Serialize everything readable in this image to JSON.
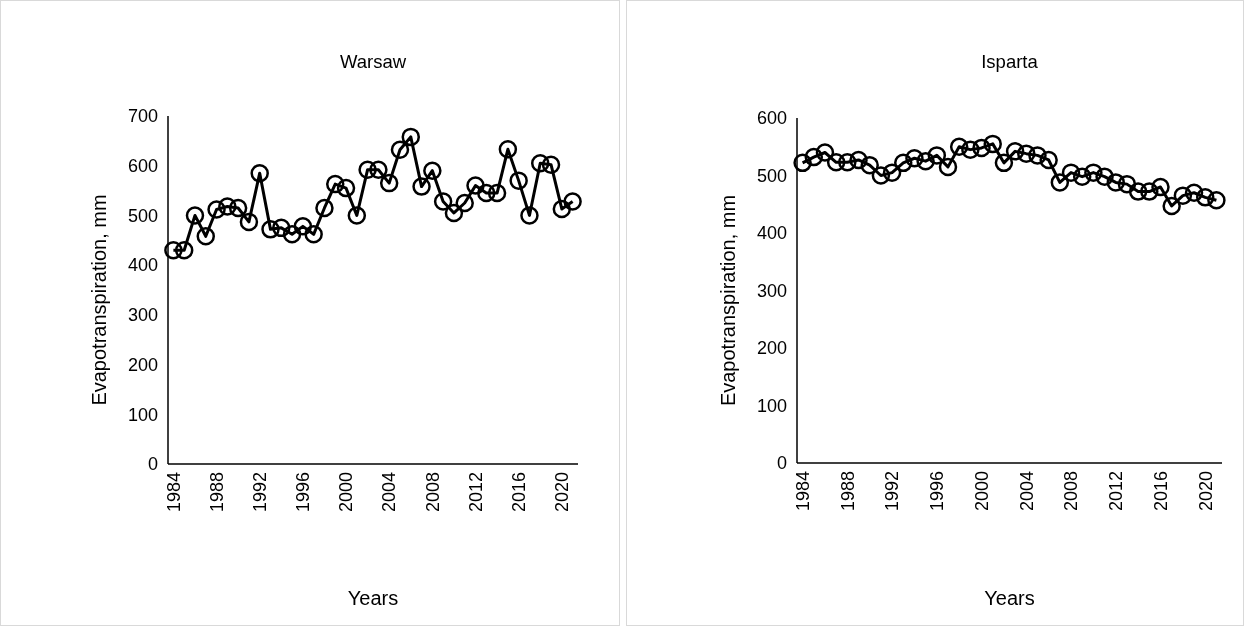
{
  "chart_data": [
    {
      "type": "line",
      "title": "Warsaw",
      "xlabel": "Years",
      "ylabel": "Evapotranspiration, mm",
      "marker": "circle",
      "line_style": "solid",
      "grid": false,
      "xlim": [
        1983.5,
        2021.5
      ],
      "xticks": [
        1984,
        1988,
        1992,
        1996,
        2000,
        2004,
        2008,
        2012,
        2016,
        2020
      ],
      "ylim": [
        0,
        700
      ],
      "yticks": [
        0,
        100,
        200,
        300,
        400,
        500,
        600,
        700
      ],
      "x": [
        1984,
        1985,
        1986,
        1987,
        1988,
        1989,
        1990,
        1991,
        1992,
        1993,
        1994,
        1995,
        1996,
        1997,
        1998,
        1999,
        2000,
        2001,
        2002,
        2003,
        2004,
        2005,
        2006,
        2007,
        2008,
        2009,
        2010,
        2011,
        2012,
        2013,
        2014,
        2015,
        2016,
        2017,
        2018,
        2019,
        2020,
        2021
      ],
      "series": [
        {
          "color": "#000000",
          "values": [
            430,
            430,
            500,
            458,
            512,
            518,
            515,
            487,
            585,
            472,
            475,
            462,
            478,
            462,
            515,
            563,
            555,
            500,
            592,
            592,
            565,
            632,
            658,
            558,
            590,
            528,
            505,
            525,
            560,
            545,
            545,
            633,
            570,
            500,
            605,
            602,
            513,
            528
          ]
        }
      ]
    },
    {
      "type": "line",
      "title": "Isparta",
      "xlabel": "Years",
      "ylabel": "Evapotranspiration, mm",
      "marker": "circle",
      "line_style": "solid",
      "grid": false,
      "xlim": [
        1983.5,
        2021.5
      ],
      "xticks": [
        1984,
        1988,
        1992,
        1996,
        2000,
        2004,
        2008,
        2012,
        2016,
        2020
      ],
      "ylim": [
        0,
        600
      ],
      "yticks": [
        0,
        100,
        200,
        300,
        400,
        500,
        600
      ],
      "x": [
        1984,
        1985,
        1986,
        1987,
        1988,
        1989,
        1990,
        1991,
        1992,
        1993,
        1994,
        1995,
        1996,
        1997,
        1998,
        1999,
        2000,
        2001,
        2002,
        2003,
        2004,
        2005,
        2006,
        2007,
        2008,
        2009,
        2010,
        2011,
        2012,
        2013,
        2014,
        2015,
        2016,
        2017,
        2018,
        2019,
        2020,
        2021
      ],
      "series": [
        {
          "color": "#000000",
          "values": [
            522,
            532,
            540,
            523,
            523,
            527,
            518,
            500,
            505,
            522,
            530,
            525,
            535,
            515,
            550,
            545,
            548,
            555,
            522,
            542,
            538,
            535,
            527,
            488,
            505,
            498,
            505,
            498,
            488,
            485,
            472,
            472,
            480,
            447,
            465,
            470,
            462,
            457
          ]
        }
      ]
    }
  ]
}
